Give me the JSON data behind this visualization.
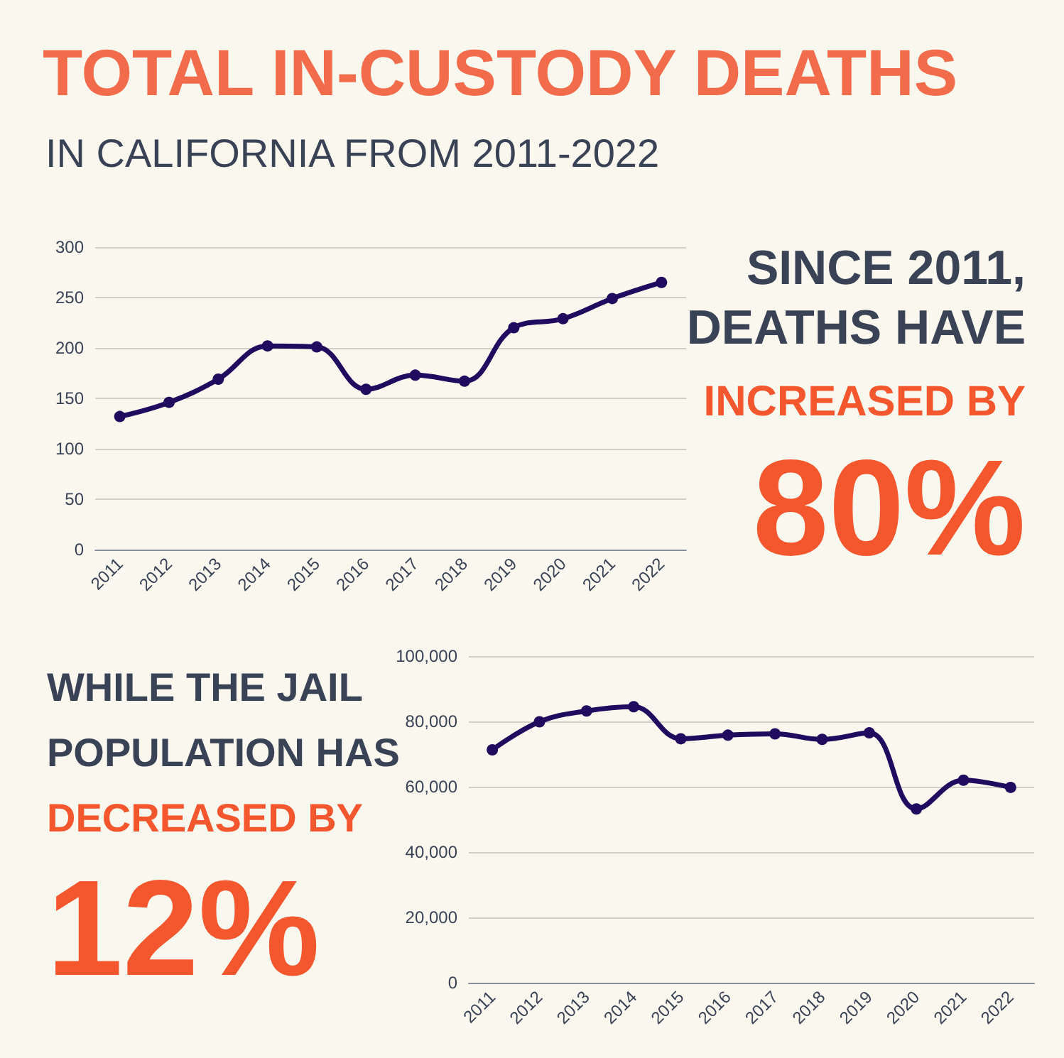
{
  "chart_data": [
    {
      "type": "line",
      "title": "TOTAL IN-CUSTODY DEATHS",
      "subtitle": "IN CALIFORNIA FROM 2011-2022",
      "categories": [
        "2011",
        "2012",
        "2013",
        "2014",
        "2015",
        "2016",
        "2017",
        "2018",
        "2019",
        "2020",
        "2021",
        "2022"
      ],
      "series": [
        {
          "color": "#1f0c5e",
          "values": [
            132,
            146,
            169,
            202,
            201,
            159,
            173,
            167,
            220,
            229,
            249,
            265
          ]
        }
      ],
      "ylim": [
        0,
        300
      ],
      "yticks": [
        0,
        50,
        100,
        150,
        200,
        250,
        300
      ],
      "grid": "y",
      "marker": "circle",
      "line_style": "solid",
      "annotations": [
        "SINCE 2011,",
        "DEATHS HAVE",
        "INCREASED BY",
        "80%"
      ]
    },
    {
      "type": "line",
      "categories": [
        "2011",
        "2012",
        "2013",
        "2014",
        "2015",
        "2016",
        "2017",
        "2018",
        "2019",
        "2020",
        "2021",
        "2022"
      ],
      "series": [
        {
          "color": "#1f0c5e",
          "values": [
            71300,
            79900,
            83200,
            84500,
            74700,
            75800,
            76200,
            74500,
            76500,
            53200,
            62000,
            59800
          ]
        }
      ],
      "ylim": [
        0,
        100000
      ],
      "yticks": [
        {
          "value": 0,
          "label": "0"
        },
        {
          "value": 20000,
          "label": "20,000"
        },
        {
          "value": 40000,
          "label": "40,000"
        },
        {
          "value": 60000,
          "label": "60,000"
        },
        {
          "value": 80000,
          "label": "80,000"
        },
        {
          "value": 100000,
          "label": "100,000"
        }
      ],
      "grid": "y",
      "marker": "circle",
      "line_style": "solid",
      "annotations": [
        "WHILE THE JAIL",
        "POPULATION HAS",
        "DECREASED BY",
        "12%"
      ]
    }
  ]
}
